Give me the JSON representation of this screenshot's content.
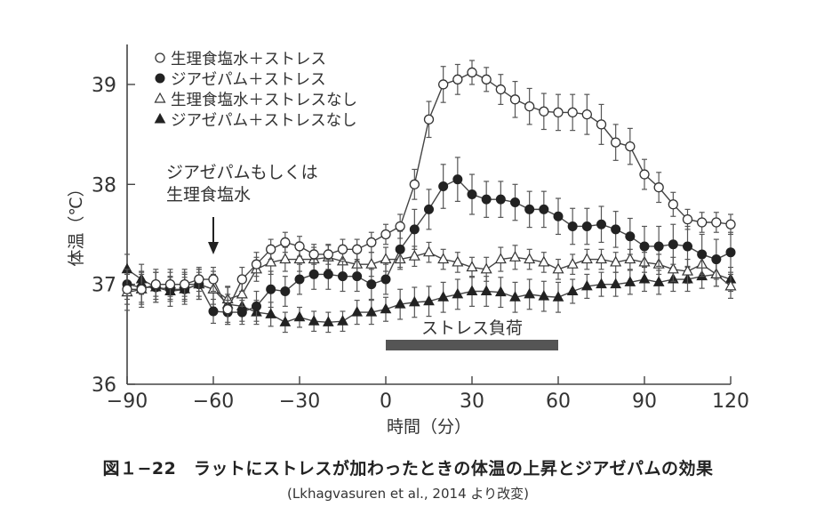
{
  "chart_data": {
    "type": "line",
    "xlabel": "時間（分）",
    "ylabel": "体温（℃）",
    "xlim": [
      -90,
      120
    ],
    "ylim": [
      36,
      39.4
    ],
    "xticks": [
      -90,
      -60,
      -30,
      0,
      30,
      60,
      90,
      120
    ],
    "yticks": [
      36,
      37,
      38,
      39
    ],
    "tick_labels_x": [
      "−90",
      "−60",
      "−30",
      "0",
      "30",
      "60",
      "90",
      "120"
    ],
    "tick_labels_y": [
      "36",
      "37",
      "38",
      "39"
    ],
    "grid": false,
    "legend_position": "top-left",
    "x": [
      -90,
      -85,
      -80,
      -75,
      -70,
      -65,
      -60,
      -55,
      -50,
      -45,
      -40,
      -35,
      -30,
      -25,
      -20,
      -15,
      -10,
      -5,
      0,
      5,
      10,
      15,
      20,
      25,
      30,
      35,
      40,
      45,
      50,
      55,
      60,
      65,
      70,
      75,
      80,
      85,
      90,
      95,
      100,
      105,
      110,
      115,
      120
    ],
    "series": [
      {
        "name": "生理食塩水＋ストレス",
        "marker": "open-circle",
        "values": [
          36.95,
          36.95,
          37.0,
          37.0,
          37.0,
          37.05,
          37.05,
          36.75,
          37.05,
          37.2,
          37.35,
          37.42,
          37.38,
          37.3,
          37.3,
          37.35,
          37.35,
          37.42,
          37.5,
          37.58,
          38.0,
          38.65,
          39.0,
          39.05,
          39.12,
          39.05,
          38.95,
          38.85,
          38.78,
          38.73,
          38.72,
          38.72,
          38.7,
          38.6,
          38.42,
          38.38,
          38.1,
          37.97,
          37.8,
          37.65,
          37.62,
          37.62,
          37.6
        ],
        "errors": [
          0.15,
          0.15,
          0.12,
          0.12,
          0.12,
          0.12,
          0.12,
          0.15,
          0.12,
          0.12,
          0.1,
          0.1,
          0.1,
          0.1,
          0.1,
          0.1,
          0.1,
          0.1,
          0.1,
          0.12,
          0.15,
          0.18,
          0.18,
          0.15,
          0.12,
          0.12,
          0.15,
          0.18,
          0.18,
          0.18,
          0.18,
          0.18,
          0.2,
          0.2,
          0.18,
          0.18,
          0.15,
          0.15,
          0.12,
          0.1,
          0.1,
          0.1,
          0.1
        ]
      },
      {
        "name": "ジアゼパム＋ストレス",
        "marker": "filled-circle",
        "values": [
          37.0,
          36.97,
          36.97,
          36.95,
          36.95,
          37.0,
          36.73,
          36.72,
          36.72,
          36.78,
          36.95,
          36.93,
          37.05,
          37.1,
          37.1,
          37.08,
          37.08,
          37.0,
          37.05,
          37.35,
          37.55,
          37.75,
          37.98,
          38.05,
          37.9,
          37.85,
          37.85,
          37.82,
          37.75,
          37.75,
          37.68,
          37.58,
          37.58,
          37.6,
          37.55,
          37.48,
          37.38,
          37.38,
          37.4,
          37.38,
          37.3,
          37.25,
          37.32
        ],
        "errors": [
          0.15,
          0.15,
          0.15,
          0.12,
          0.12,
          0.12,
          0.12,
          0.12,
          0.12,
          0.15,
          0.18,
          0.15,
          0.15,
          0.15,
          0.15,
          0.15,
          0.15,
          0.15,
          0.15,
          0.18,
          0.2,
          0.2,
          0.22,
          0.22,
          0.2,
          0.18,
          0.18,
          0.18,
          0.18,
          0.18,
          0.18,
          0.18,
          0.18,
          0.18,
          0.18,
          0.18,
          0.2,
          0.2,
          0.2,
          0.2,
          0.2,
          0.2,
          0.2
        ]
      },
      {
        "name": "生理食塩水＋ストレスなし",
        "marker": "open-triangle",
        "values": [
          36.92,
          36.95,
          37.0,
          37.0,
          37.0,
          37.0,
          36.95,
          36.85,
          36.9,
          37.15,
          37.22,
          37.25,
          37.25,
          37.25,
          37.27,
          37.23,
          37.2,
          37.2,
          37.25,
          37.25,
          37.28,
          37.32,
          37.25,
          37.22,
          37.17,
          37.15,
          37.25,
          37.27,
          37.25,
          37.22,
          37.15,
          37.2,
          37.25,
          37.25,
          37.22,
          37.25,
          37.22,
          37.2,
          37.15,
          37.13,
          37.2,
          37.1,
          36.98
        ],
        "errors": [
          0.18,
          0.18,
          0.15,
          0.15,
          0.15,
          0.15,
          0.15,
          0.12,
          0.12,
          0.12,
          0.12,
          0.12,
          0.12,
          0.12,
          0.12,
          0.12,
          0.12,
          0.12,
          0.12,
          0.1,
          0.1,
          0.1,
          0.1,
          0.1,
          0.1,
          0.12,
          0.12,
          0.12,
          0.1,
          0.1,
          0.1,
          0.1,
          0.1,
          0.1,
          0.1,
          0.1,
          0.1,
          0.1,
          0.12,
          0.12,
          0.12,
          0.12,
          0.12
        ]
      },
      {
        "name": "ジアゼパム＋ストレスなし",
        "marker": "filled-triangle",
        "values": [
          37.15,
          37.05,
          36.97,
          36.93,
          36.95,
          37.0,
          36.95,
          36.8,
          36.78,
          36.72,
          36.7,
          36.62,
          36.67,
          36.63,
          36.62,
          36.63,
          36.72,
          36.72,
          36.75,
          36.8,
          36.82,
          36.83,
          36.87,
          36.9,
          36.93,
          36.93,
          36.92,
          36.87,
          36.9,
          36.88,
          36.87,
          36.93,
          36.98,
          37.0,
          37.0,
          37.02,
          37.05,
          37.02,
          37.05,
          37.05,
          37.08,
          37.1,
          37.05
        ],
        "errors": [
          0.15,
          0.15,
          0.15,
          0.15,
          0.15,
          0.15,
          0.18,
          0.18,
          0.15,
          0.12,
          0.12,
          0.1,
          0.1,
          0.1,
          0.1,
          0.1,
          0.12,
          0.12,
          0.12,
          0.15,
          0.15,
          0.15,
          0.15,
          0.15,
          0.15,
          0.15,
          0.15,
          0.15,
          0.15,
          0.15,
          0.15,
          0.12,
          0.12,
          0.12,
          0.12,
          0.12,
          0.12,
          0.12,
          0.12,
          0.12,
          0.12,
          0.12,
          0.12
        ]
      }
    ],
    "annotations": {
      "injection": {
        "lines": [
          "ジアゼパムもしくは",
          "生理食塩水"
        ],
        "x": -60
      },
      "stress_bar": {
        "label": "ストレス負荷",
        "x_start": 0,
        "x_end": 60,
        "color": "#555555"
      }
    }
  },
  "caption": {
    "title": "図１−22　ラットにストレスが加わったときの体温の上昇とジアゼパムの効果",
    "source": "(Lkhagvasuren et al., 2014 より改変)"
  }
}
